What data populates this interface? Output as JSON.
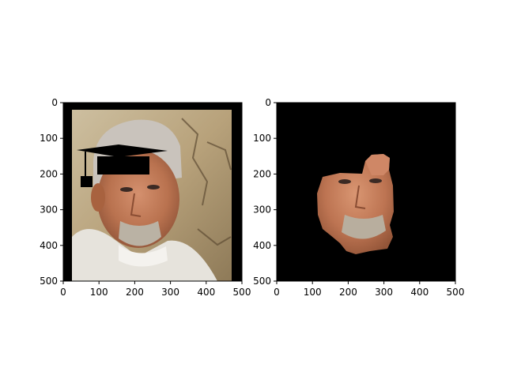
{
  "chart_data": [
    {
      "type": "image",
      "title": "",
      "xlabel": "",
      "ylabel": "",
      "xlim": [
        0,
        500
      ],
      "ylim": [
        500,
        0
      ],
      "xticks": [
        0,
        100,
        200,
        300,
        400,
        500
      ],
      "yticks": [
        0,
        100,
        200,
        300,
        400,
        500
      ],
      "content": "photo of an older man's face with a black graduation cap overlay",
      "colors": {
        "frame": "#000000",
        "cap": "#000000"
      }
    },
    {
      "type": "image",
      "title": "",
      "xlabel": "",
      "ylabel": "",
      "xlim": [
        0,
        500
      ],
      "ylim": [
        500,
        0
      ],
      "xticks": [
        0,
        100,
        200,
        300,
        400,
        500
      ],
      "yticks": [
        0,
        100,
        200,
        300,
        400,
        500
      ],
      "content": "segmented face region on black background",
      "colors": {
        "background": "#000000"
      }
    }
  ]
}
